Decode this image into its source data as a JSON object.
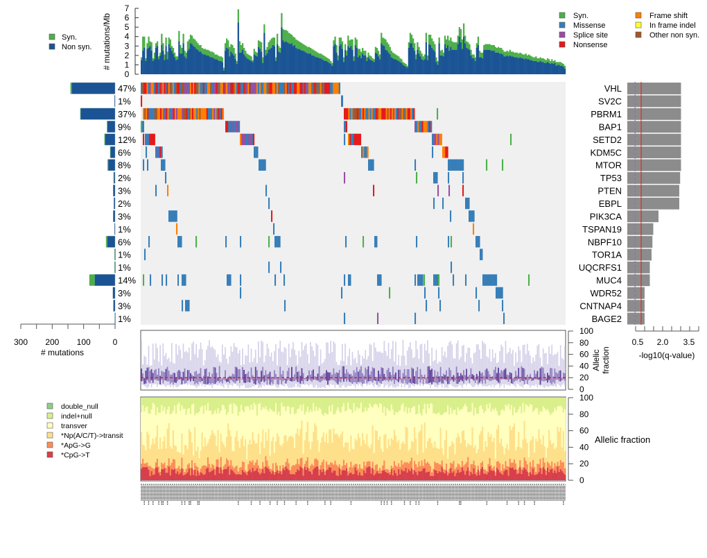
{
  "chart_data": [
    {
      "id": "mutation_rate",
      "type": "bar",
      "stacked": true,
      "ylabel": "# mutations/Mb",
      "ylim": [
        0,
        7
      ],
      "yticks": [
        0,
        1,
        2,
        3,
        4,
        5,
        6,
        7
      ],
      "legend": [
        {
          "label": "Syn.",
          "color": "#4daf4a"
        },
        {
          "label": "Non syn.",
          "color": "#1a5494"
        }
      ],
      "series": [
        {
          "name": "Non syn.",
          "values": [
            1.5,
            2.5,
            2.8,
            1.4,
            2.7,
            2.8,
            3.0,
            2.5,
            1.4,
            1.6,
            2.8,
            3.0,
            1.6,
            2.0,
            3.1,
            2.5,
            1.5,
            3.0,
            1.6,
            3.2,
            2.8,
            2.5,
            2.2,
            1.8,
            1.5,
            1.6,
            3.5,
            2.2,
            2.2,
            3.3,
            1.9,
            1.7,
            2.5,
            2.7,
            3.3,
            3.2,
            3.0,
            2.9,
            2.7,
            2.6,
            2.4,
            2.4,
            2.2,
            2.1,
            2.1,
            2.0,
            2.0,
            1.9,
            1.8,
            1.8,
            1.7,
            1.6,
            1.6,
            1.5,
            1.4,
            1.4,
            1.3,
            0.4,
            2.5,
            2.8,
            2.7,
            1.9,
            2.4,
            2.2,
            2.0,
            1.6,
            1.1,
            5.5,
            2.3,
            2.3,
            2.6,
            2.1,
            1.9,
            1.7,
            1.6,
            1.5,
            1.4,
            1.3,
            2.1,
            2.0,
            1.9,
            2.9,
            2.7,
            2.4,
            1.2,
            4.4,
            2.0,
            2.2,
            2.6,
            2.7,
            2.8,
            3.1,
            3.0,
            1.4,
            3.2,
            2.4,
            2.3,
            5.0,
            3.6,
            3.4,
            3.5,
            3.4,
            3.3,
            3.2,
            3.3,
            3.0,
            3.1,
            2.8,
            2.7,
            2.7,
            2.6,
            2.5,
            2.5,
            2.4,
            2.3,
            2.2,
            2.2,
            2.2,
            2.0,
            2.0,
            1.9,
            1.8,
            1.8,
            1.7,
            1.7,
            1.6,
            1.5,
            1.4,
            1.4,
            1.3,
            1.2,
            1.1,
            0.9,
            3.0,
            3.2,
            2.3,
            1.5,
            3.0,
            3.2,
            2.7,
            1.3,
            2.6,
            2.0,
            3.0,
            2.8,
            3.0,
            2.6,
            1.4,
            3.1,
            2.8,
            1.8,
            2.0,
            1.7,
            2.2,
            2.0,
            2.0,
            1.4,
            1.8,
            1.6,
            1.5,
            1.4,
            1.3,
            2.3,
            2.2,
            1.9,
            1.6,
            3.3,
            3.1,
            3.0,
            2.6,
            2.5,
            2.3,
            2.1,
            1.8,
            1.7,
            1.6,
            1.6,
            1.5,
            1.4,
            1.3,
            1.2,
            1.0,
            0.9,
            0.8,
            0.7,
            2.8,
            3.3,
            3.3,
            2.8,
            2.5,
            1.6,
            2.6,
            2.2,
            1.9,
            1.6,
            1.5,
            1.6,
            3.4,
            1.5,
            3.2,
            3.1,
            2.8,
            2.6,
            2.4,
            1.3,
            1.0,
            3.3,
            2.0,
            2.0,
            1.9,
            3.2,
            2.8,
            3.1,
            2.5,
            2.9,
            2.6,
            2.6,
            2.6,
            2.6,
            3.2,
            4.0,
            3.4,
            2.7,
            4.0,
            3.3,
            2.8,
            2.7,
            2.6,
            2.0,
            1.7,
            1.7,
            1.4,
            2.8,
            3.1,
            1.8,
            1.8,
            1.7,
            2.6,
            2.6,
            2.6,
            2.6,
            2.6,
            2.5,
            2.5,
            2.5,
            2.3,
            2.3,
            2.3,
            2.2,
            2.2,
            2.1,
            1.9,
            1.9,
            2.0,
            1.9,
            2.0,
            1.9,
            1.9,
            1.8,
            1.8,
            1.8,
            1.7,
            1.8,
            1.7,
            1.7,
            1.6,
            1.7,
            1.6,
            1.6,
            1.5,
            1.5,
            1.4,
            1.4,
            1.4,
            1.3,
            1.3,
            1.4,
            1.3,
            1.3,
            1.2,
            1.2,
            1.3,
            1.2,
            1.1,
            1.2,
            1.1,
            1.2,
            0.9,
            1.0,
            1.0,
            0.9,
            0.9,
            0.8,
            0.6
          ]
        },
        {
          "name": "Syn.",
          "values": [
            0.3,
            1.5,
            1.2,
            0.3,
            0.6,
            1.2,
            0.5,
            0.9,
            0.3,
            0.7,
            0.5,
            0.5,
            0.3,
            0.3,
            1.2,
            0.8,
            0.6,
            0.9,
            0.8,
            0.7,
            0.9,
            0.5,
            0.6,
            0.5,
            0.4,
            0.3,
            1.1,
            0.9,
            0.6,
            1.0,
            0.6,
            0.6,
            1.0,
            1.0,
            0.9,
            0.9,
            0.8,
            0.8,
            0.8,
            0.7,
            0.7,
            0.7,
            0.6,
            0.6,
            0.6,
            0.6,
            0.6,
            0.6,
            0.6,
            0.6,
            0.6,
            0.5,
            0.5,
            0.5,
            0.5,
            0.5,
            0.5,
            0.3,
            0.8,
            1.0,
            0.9,
            1.0,
            0.8,
            0.9,
            0.8,
            0.6,
            0.3,
            1.4,
            1.2,
            0.8,
            0.7,
            0.7,
            0.6,
            0.5,
            0.5,
            0.5,
            0.5,
            0.2,
            0.6,
            0.4,
            0.4,
            0.7,
            0.8,
            1.0,
            0.6,
            0.9,
            0.6,
            0.7,
            0.8,
            0.9,
            1.0,
            0.8,
            0.9,
            0.4,
            1.1,
            0.6,
            0.5,
            1.5,
            1.2,
            1.3,
            1.2,
            1.2,
            1.1,
            1.1,
            0.9,
            1.0,
            0.8,
            0.9,
            0.9,
            0.8,
            0.8,
            0.8,
            0.7,
            0.7,
            0.7,
            0.7,
            0.7,
            0.6,
            0.7,
            0.6,
            0.6,
            0.6,
            0.5,
            0.5,
            0.5,
            0.5,
            0.5,
            0.5,
            0.4,
            0.4,
            0.4,
            0.3,
            0.3,
            0.6,
            0.8,
            0.8,
            0.5,
            0.9,
            0.7,
            0.8,
            0.5,
            0.6,
            0.5,
            1.1,
            0.8,
            0.7,
            1.1,
            0.5,
            0.8,
            0.9,
            0.9,
            0.7,
            0.7,
            0.6,
            0.5,
            0.5,
            0.4,
            0.5,
            0.4,
            0.4,
            0.3,
            0.3,
            0.6,
            0.6,
            0.6,
            0.5,
            1.1,
            0.8,
            0.8,
            1.1,
            0.9,
            0.9,
            0.8,
            0.7,
            0.6,
            0.6,
            0.5,
            0.5,
            0.5,
            0.4,
            0.4,
            0.3,
            0.3,
            0.3,
            0.2,
            0.6,
            1.1,
            0.9,
            1.0,
            0.8,
            0.5,
            0.8,
            0.7,
            0.6,
            0.6,
            0.4,
            0.5,
            1.0,
            0.5,
            1.0,
            1.1,
            1.0,
            0.9,
            0.8,
            0.5,
            0.4,
            0.6,
            0.5,
            0.6,
            0.4,
            0.9,
            0.9,
            1.0,
            1.1,
            1.0,
            0.9,
            0.8,
            0.8,
            0.8,
            0.9,
            1.0,
            1.4,
            1.0,
            1.4,
            0.8,
            0.7,
            0.7,
            0.6,
            0.6,
            0.4,
            0.4,
            0.4,
            0.5,
            0.9,
            0.7,
            0.5,
            0.6,
            0.5,
            0.6,
            0.6,
            0.6,
            0.6,
            0.6,
            0.6,
            0.6,
            0.6,
            0.5,
            0.6,
            0.6,
            0.6,
            0.5,
            0.5,
            0.5,
            0.5,
            0.5,
            0.6,
            0.5,
            0.5,
            0.5,
            0.5,
            0.5,
            0.5,
            0.5,
            0.5,
            0.4,
            0.5,
            0.5,
            0.4,
            0.5,
            0.5,
            0.4,
            0.4,
            0.4,
            0.5,
            0.4,
            0.4,
            0.4,
            0.4,
            0.4,
            0.4,
            0.3,
            0.4,
            0.4,
            0.3,
            0.4,
            0.3,
            0.3,
            0.4,
            0.3,
            0.3,
            0.4,
            0.3,
            0.3,
            0.3,
            0.3,
            0.2
          ]
        }
      ]
    },
    {
      "id": "oncoprint",
      "type": "heatmap",
      "legend": [
        {
          "label": "Syn.",
          "color": "#4daf4a"
        },
        {
          "label": "Missense",
          "color": "#377eb8"
        },
        {
          "label": "Splice site",
          "color": "#984ea3"
        },
        {
          "label": "Nonsense",
          "color": "#e41a1c"
        },
        {
          "label": "Frame shift",
          "color": "#ff7f00"
        },
        {
          "label": "In frame indel",
          "color": "#ffff33"
        },
        {
          "label": "Other non syn.",
          "color": "#a65628"
        }
      ],
      "genes": [
        "VHL",
        "SV2C",
        "PBRM1",
        "BAP1",
        "SETD2",
        "KDM5C",
        "MTOR",
        "TP53",
        "PTEN",
        "EBPL",
        "PIK3CA",
        "TSPAN19",
        "NBPF10",
        "TOR1A",
        "UQCRFS1",
        "MUC4",
        "WDR52",
        "CNTNAP4",
        "BAGE2"
      ],
      "percent_mutated": [
        "47%",
        "1%",
        "37%",
        "9%",
        "12%",
        "6%",
        "8%",
        "2%",
        "3%",
        "2%",
        "3%",
        "1%",
        "6%",
        "1%",
        "1%",
        "14%",
        "3%",
        "3%",
        "1%"
      ],
      "note": "Samples sorted by mutation status; cell types drawn per gene as blocks of mutated samples"
    },
    {
      "id": "gene_mutation_counts",
      "type": "bar",
      "orientation": "horizontal",
      "xlabel": "# mutations",
      "xlim": [
        300,
        0
      ],
      "xticks": [
        300,
        200,
        100,
        0
      ],
      "categories": [
        "VHL",
        "SV2C",
        "PBRM1",
        "BAP1",
        "SETD2",
        "KDM5C",
        "MTOR",
        "TP53",
        "PTEN",
        "EBPL",
        "PIK3CA",
        "TSPAN19",
        "NBPF10",
        "TOR1A",
        "UQCRFS1",
        "MUC4",
        "WDR52",
        "CNTNAP4",
        "BAGE2"
      ],
      "series": [
        {
          "name": "Non syn.",
          "values": [
            138,
            2,
            110,
            25,
            32,
            15,
            22,
            4,
            6,
            4,
            6,
            2,
            25,
            1,
            1,
            65,
            7,
            5,
            1
          ]
        },
        {
          "name": "Syn.",
          "values": [
            4,
            0,
            1,
            1,
            2,
            1,
            2,
            1,
            0,
            0,
            0,
            0,
            4,
            1,
            1,
            17,
            0,
            1,
            0
          ]
        }
      ]
    },
    {
      "id": "qvalue",
      "type": "bar",
      "orientation": "horizontal",
      "xlabel": "-log10(q-value)",
      "xticks": [
        0.5,
        2.0,
        3.5
      ],
      "xlim": [
        0,
        4.0
      ],
      "threshold_line": 1.0,
      "threshold_color": "#e41a1c",
      "dashed_line": 0.3,
      "dashed_color": "#9966cc",
      "categories": [
        "VHL",
        "SV2C",
        "PBRM1",
        "BAP1",
        "SETD2",
        "KDM5C",
        "MTOR",
        "TP53",
        "PTEN",
        "EBPL",
        "PIK3CA",
        "TSPAN19",
        "NBPF10",
        "TOR1A",
        "UQCRFS1",
        "MUC4",
        "WDR52",
        "CNTNAP4",
        "BAGE2"
      ],
      "values": [
        3.1,
        3.1,
        3.1,
        3.1,
        3.1,
        3.1,
        3.1,
        3.05,
        3.0,
        3.0,
        1.8,
        1.5,
        1.45,
        1.4,
        1.3,
        1.3,
        1.0,
        1.0,
        1.0
      ]
    },
    {
      "id": "allelic_fraction",
      "type": "bar",
      "ylabel": "Allelic fraction",
      "ylim": [
        0,
        100
      ],
      "yticks": [
        0,
        20,
        40,
        60,
        80,
        100
      ],
      "median_line": 20,
      "median_line_color": "#e41a1c"
    },
    {
      "id": "mutation_spectrum",
      "type": "bar",
      "stacked": true,
      "ylabel": "%",
      "ylim": [
        0,
        100
      ],
      "yticks": [
        0,
        20,
        40,
        60,
        80,
        100
      ],
      "legend": [
        {
          "label": "double_null",
          "color": "#8fcc8f"
        },
        {
          "label": "indel+null",
          "color": "#d9ef8b"
        },
        {
          "label": "transver",
          "color": "#ffffbf"
        },
        {
          "label": "*Np(A/C/T)->transit",
          "color": "#fee08b"
        },
        {
          "label": "*ApG->G",
          "color": "#fc8d59"
        },
        {
          "label": "*CpG->T",
          "color": "#d73f4c"
        }
      ],
      "typical_values": {
        "CpG->T": 10,
        "ApG->G": 8,
        "Np->transit": 25,
        "transver": 43,
        "indel+null": 14,
        "double_null": 0
      }
    }
  ]
}
